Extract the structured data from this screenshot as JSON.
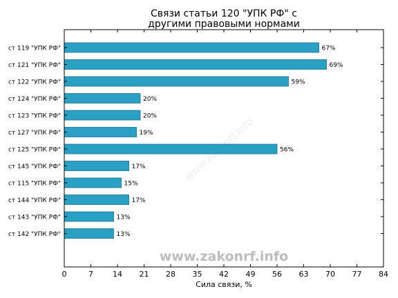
{
  "chart_data": {
    "type": "bar",
    "orientation": "horizontal",
    "title_lines": [
      "Связи статьи 120 \"УПК РФ\" с",
      "другими правовыми нормами"
    ],
    "xlabel": "Сила связи, %",
    "ylabel": "",
    "xlim": [
      0,
      84
    ],
    "xticks": [
      "0",
      "7",
      "14",
      "21",
      "28",
      "35",
      "42",
      "49",
      "56",
      "63",
      "70",
      "77",
      "84"
    ],
    "grid": false,
    "bar_color": "#2aa0c4",
    "categories": [
      "ст 119 \"УПК РФ\"",
      "ст 121 \"УПК РФ\"",
      "ст 122 \"УПК РФ\"",
      "ст 124 \"УПК РФ\"",
      "ст 123 \"УПК РФ\"",
      "ст 127 \"УПК РФ\"",
      "ст 125 \"УПК РФ\"",
      "ст 145 \"УПК РФ\"",
      "ст 115 \"УПК РФ\"",
      "ст 144 \"УПК РФ\"",
      "ст 143 \"УПК РФ\"",
      "ст 142 \"УПК РФ\""
    ],
    "values": [
      67,
      69,
      59,
      20,
      20,
      19,
      56,
      17,
      15,
      17,
      13,
      13
    ],
    "value_labels": [
      "67%",
      "69%",
      "59%",
      "20%",
      "20%",
      "19%",
      "56%",
      "17%",
      "15%",
      "17%",
      "13%",
      "13%"
    ]
  },
  "watermark": {
    "text": "www.zakonrf.info"
  }
}
